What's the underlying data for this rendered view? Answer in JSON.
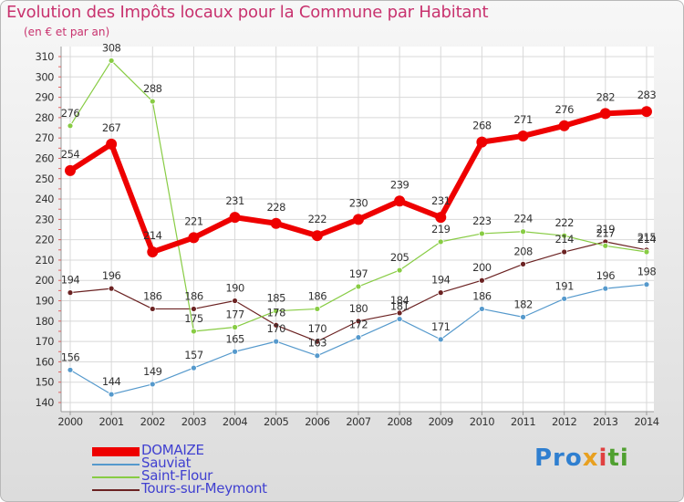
{
  "header": {
    "title": "Evolution des Impôts locaux pour la Commune par Habitant",
    "subtitle": "(en € et par an)"
  },
  "logo": {
    "text_part1": "Pro",
    "text_part2": "x",
    "text_part3": "i",
    "text_part4": "ti"
  },
  "chart_data": {
    "type": "line",
    "title": "Evolution des Impôts locaux pour la Commune par Habitant",
    "ylabel": "(en € et par an)",
    "xlabel": "",
    "ylim": [
      140,
      310
    ],
    "grid": true,
    "legend_position": "bottom-left",
    "x": [
      "2000",
      "2001",
      "2002",
      "2003",
      "2004",
      "2005",
      "2006",
      "2007",
      "2008",
      "2009",
      "2010",
      "2011",
      "2012",
      "2013",
      "2014"
    ],
    "y_ticks": [
      140,
      150,
      160,
      170,
      180,
      190,
      200,
      210,
      220,
      230,
      240,
      250,
      260,
      270,
      280,
      290,
      300,
      310
    ],
    "series": [
      {
        "name": "DOMAIZE",
        "color": "#ee0000",
        "values": [
          254,
          267,
          214,
          221,
          231,
          228,
          222,
          230,
          239,
          231,
          268,
          271,
          276,
          282,
          283
        ]
      },
      {
        "name": "Sauviat",
        "color": "#5599cc",
        "values": [
          156,
          144,
          149,
          157,
          165,
          170,
          163,
          172,
          181,
          171,
          186,
          182,
          191,
          196,
          198
        ]
      },
      {
        "name": "Saint-Flour",
        "color": "#88cc44",
        "values": [
          276,
          308,
          288,
          175,
          177,
          185,
          186,
          197,
          205,
          219,
          223,
          224,
          222,
          217,
          214
        ]
      },
      {
        "name": "Tours-sur-Meymont",
        "color": "#6b2222",
        "values": [
          194,
          196,
          186,
          186,
          190,
          178,
          170,
          180,
          184,
          194,
          200,
          208,
          214,
          219,
          215
        ]
      }
    ]
  }
}
